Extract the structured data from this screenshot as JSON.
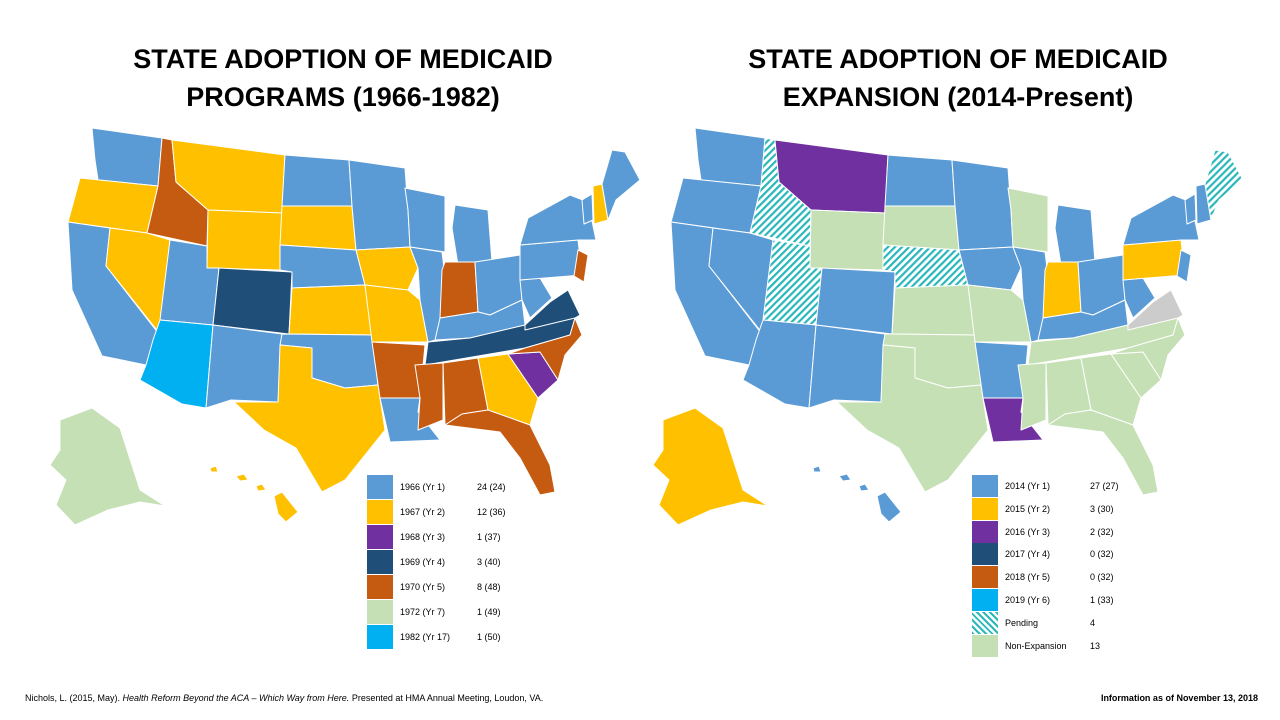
{
  "titles": {
    "left": "STATE ADOPTION OF MEDICAID\nPROGRAMS (1966-1982)",
    "right": "STATE ADOPTION OF MEDICAID\nEXPANSION (2014-Present)"
  },
  "colors": {
    "yr1": "#5b9bd5",
    "yr2": "#ffc000",
    "yr3": "#7030a0",
    "yr4": "#1f4e79",
    "yr5": "#c55a11",
    "yr7": "#c5e0b4",
    "yr17": "#00b0f0",
    "pending": "#2ab7ba",
    "nonexp": "#c5e0b4",
    "border": "#ffffff"
  },
  "legend_left": [
    {
      "label": "1966 (Yr 1)",
      "count": "24 (24)",
      "color": "#5b9bd5"
    },
    {
      "label": "1967 (Yr 2)",
      "count": "12 (36)",
      "color": "#ffc000"
    },
    {
      "label": "1968 (Yr 3)",
      "count": "1 (37)",
      "color": "#7030a0"
    },
    {
      "label": "1969 (Yr 4)",
      "count": "3 (40)",
      "color": "#1f4e79"
    },
    {
      "label": "1970 (Yr 5)",
      "count": "8 (48)",
      "color": "#c55a11"
    },
    {
      "label": "1972 (Yr 7)",
      "count": "1 (49)",
      "color": "#c5e0b4"
    },
    {
      "label": "1982 (Yr 17)",
      "count": "1 (50)",
      "color": "#00b0f0"
    }
  ],
  "legend_right": [
    {
      "label": "2014 (Yr 1)",
      "count": "27 (27)",
      "color": "#5b9bd5"
    },
    {
      "label": "2015 (Yr 2)",
      "count": "3 (30)",
      "color": "#ffc000"
    },
    {
      "label": "2016 (Yr 3)",
      "count": "2 (32)",
      "color": "#7030a0"
    },
    {
      "label": "2017 (Yr 4)",
      "count": "0 (32)",
      "color": "#1f4e79"
    },
    {
      "label": "2018 (Yr 5)",
      "count": "0 (32)",
      "color": "#c55a11"
    },
    {
      "label": "2019 (Yr 6)",
      "count": "1 (33)",
      "color": "#00b0f0"
    },
    {
      "label": "Pending",
      "count": "4",
      "color": "pattern"
    },
    {
      "label": "Non-Expansion",
      "count": "13",
      "color": "#c5e0b4"
    }
  ],
  "states_left": {
    "WA": "yr1",
    "OR": "yr2",
    "CA": "yr1",
    "NV": "yr2",
    "ID": "yr5",
    "MT": "yr2",
    "WY": "yr2",
    "UT": "yr1",
    "CO": "yr4",
    "AZ": "yr17",
    "NM": "yr1",
    "ND": "yr1",
    "SD": "yr2",
    "NE": "yr1",
    "KS": "yr2",
    "OK": "yr1",
    "TX": "yr2",
    "MN": "yr1",
    "IA": "yr2",
    "MO": "yr2",
    "AR": "yr5",
    "LA": "yr1",
    "WI": "yr1",
    "IL": "yr1",
    "MI": "yr1",
    "IN": "yr5",
    "OH": "yr1",
    "KY": "yr1",
    "TN": "yr4",
    "MS": "yr5",
    "AL": "yr5",
    "GA": "yr2",
    "FL": "yr5",
    "SC": "yr3",
    "NC": "yr5",
    "VA": "yr4",
    "WV": "yr1",
    "PA": "yr1",
    "NY": "yr1",
    "VT": "yr1",
    "NH": "yr2",
    "ME": "yr1",
    "NJ": "yr5",
    "AK": "yr7",
    "HI": "yr2"
  },
  "states_right": {
    "WA": "yr1",
    "OR": "yr1",
    "CA": "yr1",
    "NV": "yr1",
    "ID": "pending",
    "MT": "yr3",
    "WY": "nonexp",
    "UT": "pending",
    "CO": "yr1",
    "AZ": "yr1",
    "NM": "yr1",
    "ND": "yr1",
    "SD": "nonexp",
    "NE": "pending",
    "KS": "nonexp",
    "OK": "nonexp",
    "TX": "nonexp",
    "MN": "yr1",
    "IA": "yr1",
    "MO": "nonexp",
    "AR": "yr1",
    "LA": "yr3",
    "WI": "nonexp",
    "IL": "yr1",
    "MI": "yr1",
    "IN": "yr2",
    "OH": "yr1",
    "KY": "yr1",
    "TN": "nonexp",
    "MS": "nonexp",
    "AL": "nonexp",
    "GA": "nonexp",
    "FL": "nonexp",
    "SC": "nonexp",
    "NC": "nonexp",
    "VA": "yr6",
    "WV": "yr1",
    "PA": "yr2",
    "NY": "yr1",
    "VT": "yr1",
    "NH": "yr1",
    "ME": "pending",
    "NJ": "yr1",
    "AK": "yr2",
    "HI": "yr1"
  },
  "citation": {
    "prefix": "Nichols, L. (2015, May). ",
    "italic": "Health Reform Beyond the ACA – Which Way from Here.",
    "suffix": " Presented at HMA Annual Meeting, Loudon, VA."
  },
  "as_of": "Information as of November 13, 2018"
}
